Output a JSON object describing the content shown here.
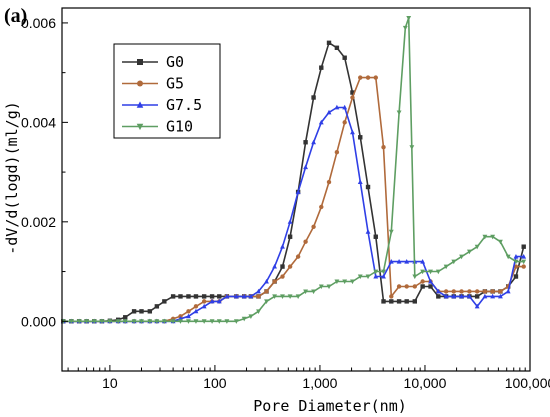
{
  "panel_label": "(a)",
  "chart_data": {
    "type": "line",
    "xlabel": "Pore Diameter(nm)",
    "ylabel": "-dV/d(logd)(ml/g)",
    "xscale": "log",
    "xlim": [
      3.5,
      100000
    ],
    "ylim": [
      -0.001,
      0.0063
    ],
    "grid": false,
    "legend_position": "top-left",
    "x_ticks": [
      10,
      100,
      1000,
      10000,
      100000
    ],
    "x_tick_labels": [
      "10",
      "100",
      "1,000",
      "10,000",
      "100,000"
    ],
    "y_ticks": [
      0,
      0.002,
      0.004,
      0.006
    ],
    "y_tick_labels": [
      "0.000",
      "0.002",
      "0.004",
      "0.006"
    ],
    "series": [
      {
        "name": "G0",
        "color": "#333333",
        "marker": "square",
        "x": [
          3.6,
          4.3,
          5.1,
          6.0,
          7.1,
          8.4,
          10,
          12,
          14,
          17,
          20,
          24,
          28,
          33,
          40,
          47,
          56,
          66,
          79,
          94,
          110,
          130,
          160,
          190,
          220,
          260,
          310,
          370,
          440,
          520,
          620,
          730,
          870,
          1030,
          1220,
          1450,
          1720,
          2040,
          2420,
          2870,
          3400,
          4030,
          4780,
          5670,
          6700,
          8000,
          9500,
          11300,
          13400,
          15900,
          18800,
          22300,
          26500,
          31400,
          37200,
          44100,
          52300,
          62000,
          73500,
          87100
        ],
        "y": [
          0,
          0,
          0,
          0,
          0,
          0,
          1e-05,
          3e-05,
          8e-05,
          0.0002,
          0.0002,
          0.0002,
          0.0003,
          0.0004,
          0.0005,
          0.0005,
          0.0005,
          0.0005,
          0.0005,
          0.0005,
          0.0005,
          0.0005,
          0.0005,
          0.0005,
          0.0005,
          0.0005,
          0.0006,
          0.0008,
          0.0011,
          0.0017,
          0.0026,
          0.0036,
          0.0045,
          0.0051,
          0.0056,
          0.0055,
          0.0053,
          0.0046,
          0.0037,
          0.0027,
          0.0017,
          0.0004,
          0.0004,
          0.0004,
          0.0004,
          0.0004,
          0.0007,
          0.0007,
          0.0005,
          0.0005,
          0.0005,
          0.0005,
          0.0005,
          0.0005,
          0.0006,
          0.0006,
          0.0006,
          0.0007,
          0.0009,
          0.0015
        ]
      },
      {
        "name": "G5",
        "color": "#b06a3b",
        "marker": "circle",
        "x": [
          3.6,
          4.3,
          5.1,
          6.0,
          7.1,
          8.4,
          10,
          12,
          14,
          17,
          20,
          24,
          28,
          33,
          40,
          47,
          56,
          66,
          79,
          94,
          110,
          130,
          160,
          190,
          220,
          260,
          310,
          370,
          440,
          520,
          620,
          730,
          870,
          1030,
          1220,
          1450,
          1720,
          2040,
          2420,
          2870,
          3400,
          4030,
          4780,
          5670,
          6700,
          8000,
          9500,
          11300,
          13400,
          15900,
          18800,
          22300,
          26500,
          31400,
          37200,
          44100,
          52300,
          62000,
          73500,
          87100
        ],
        "y": [
          0,
          0,
          0,
          0,
          0,
          0,
          0,
          0,
          0,
          0,
          0,
          0,
          0,
          0,
          5e-05,
          0.0001,
          0.0002,
          0.0003,
          0.0004,
          0.0004,
          0.0004,
          0.0005,
          0.0005,
          0.0005,
          0.0005,
          0.0005,
          0.0006,
          0.0008,
          0.0009,
          0.0011,
          0.0013,
          0.0016,
          0.0019,
          0.0023,
          0.0028,
          0.0034,
          0.004,
          0.0045,
          0.0049,
          0.0049,
          0.0049,
          0.0035,
          0.0005,
          0.0007,
          0.0007,
          0.0007,
          0.0008,
          0.0008,
          0.0006,
          0.0006,
          0.0006,
          0.0006,
          0.0006,
          0.0006,
          0.0006,
          0.0006,
          0.0006,
          0.0007,
          0.0011,
          0.0011
        ]
      },
      {
        "name": "G7.5",
        "color": "#2f3fe6",
        "marker": "triangle-up",
        "x": [
          3.6,
          4.3,
          5.1,
          6.0,
          7.1,
          8.4,
          10,
          12,
          14,
          17,
          20,
          24,
          28,
          33,
          40,
          47,
          56,
          66,
          79,
          94,
          110,
          130,
          160,
          190,
          220,
          260,
          310,
          370,
          440,
          520,
          620,
          730,
          870,
          1030,
          1220,
          1450,
          1720,
          2040,
          2420,
          2870,
          3400,
          4030,
          4780,
          5670,
          6700,
          8000,
          9500,
          11300,
          13400,
          15900,
          18800,
          22300,
          26500,
          31400,
          37200,
          44100,
          52300,
          62000,
          73500,
          87100
        ],
        "y": [
          0,
          0,
          0,
          0,
          0,
          0,
          0,
          0,
          0,
          0,
          0,
          0,
          0,
          0,
          0,
          5e-05,
          0.0001,
          0.0002,
          0.0003,
          0.0004,
          0.0004,
          0.0005,
          0.0005,
          0.0005,
          0.0005,
          0.0006,
          0.0008,
          0.0011,
          0.0015,
          0.002,
          0.0026,
          0.0031,
          0.0036,
          0.004,
          0.0042,
          0.0043,
          0.0043,
          0.0038,
          0.0028,
          0.0018,
          0.0009,
          0.0009,
          0.0012,
          0.0012,
          0.0012,
          0.0012,
          0.0012,
          0.0008,
          0.0006,
          0.0005,
          0.0005,
          0.0005,
          0.0005,
          0.0003,
          0.0005,
          0.0005,
          0.0005,
          0.0006,
          0.0013,
          0.0013
        ]
      },
      {
        "name": "G10",
        "color": "#5e9e62",
        "marker": "triangle-down",
        "x": [
          3.6,
          4.3,
          5.1,
          6.0,
          7.1,
          8.4,
          10,
          12,
          14,
          17,
          20,
          24,
          28,
          33,
          40,
          47,
          56,
          66,
          79,
          94,
          110,
          130,
          160,
          190,
          220,
          260,
          310,
          370,
          440,
          520,
          620,
          730,
          870,
          1030,
          1220,
          1450,
          1720,
          2040,
          2420,
          2870,
          3400,
          4030,
          4780,
          5670,
          6500,
          7000,
          7500,
          8000,
          9500,
          11300,
          13400,
          15900,
          18800,
          22300,
          26500,
          31400,
          37200,
          44100,
          52300,
          62000,
          73500,
          87100
        ],
        "y": [
          0,
          0,
          0,
          0,
          0,
          0,
          0,
          0,
          0,
          0,
          0,
          0,
          0,
          0,
          0,
          0,
          0,
          0,
          0,
          0,
          0,
          0,
          0,
          5e-05,
          0.0001,
          0.0002,
          0.0004,
          0.0005,
          0.0005,
          0.0005,
          0.0005,
          0.0006,
          0.0006,
          0.0007,
          0.0007,
          0.0008,
          0.0008,
          0.0008,
          0.0009,
          0.0009,
          0.001,
          0.001,
          0.0018,
          0.0042,
          0.0059,
          0.0061,
          0.0035,
          0.0009,
          0.001,
          0.001,
          0.001,
          0.0011,
          0.0012,
          0.0013,
          0.0014,
          0.0015,
          0.0017,
          0.0017,
          0.0016,
          0.0013,
          0.0012,
          0.0012
        ]
      }
    ]
  }
}
